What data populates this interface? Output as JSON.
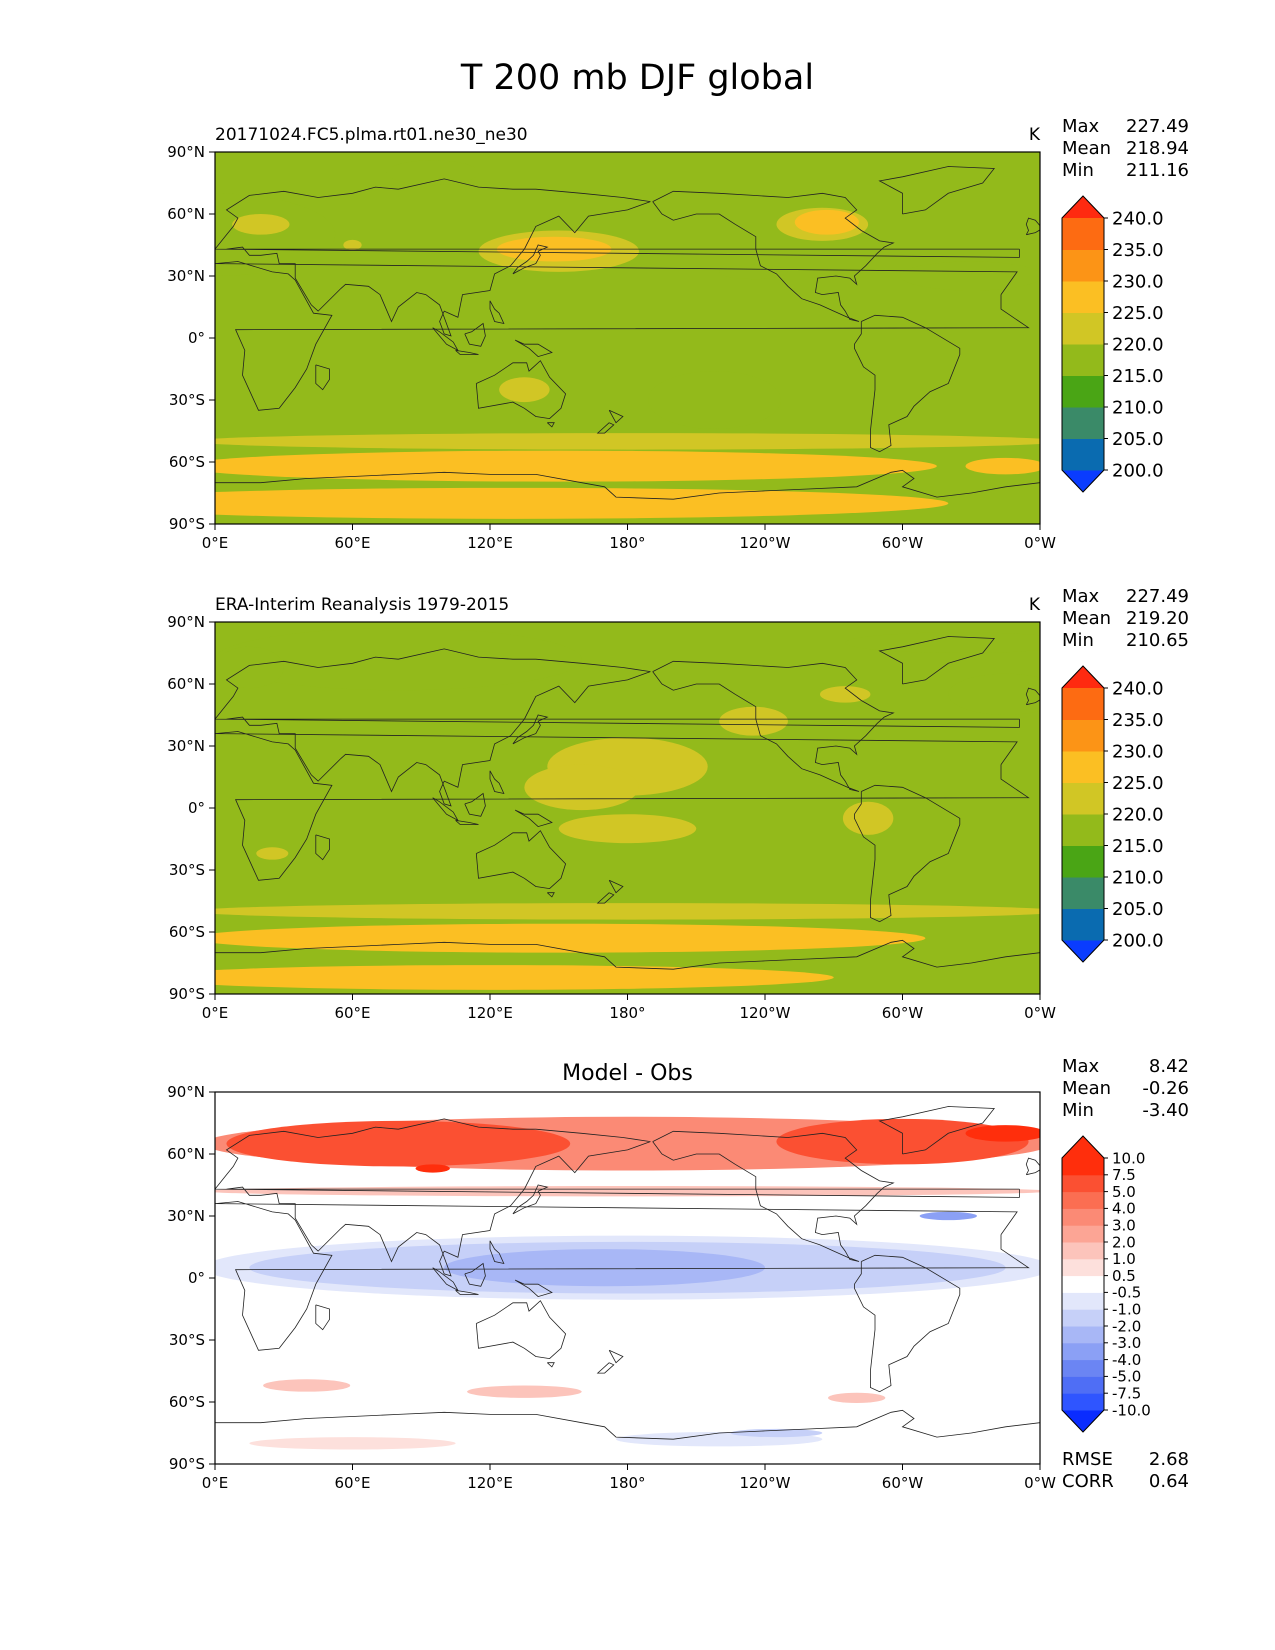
{
  "title": "T 200 mb DJF global",
  "chart_data": [
    {
      "type": "heatmap",
      "name": "model",
      "subtitle": "20171024.FC5.plma.rt01.ne30_ne30",
      "units": "K",
      "stats": {
        "max_label": "Max",
        "max": "227.49",
        "mean_label": "Mean",
        "mean": "218.94",
        "min_label": "Min",
        "min": "211.16"
      },
      "x_ticks": [
        "0°E",
        "60°E",
        "120°E",
        "180°",
        "120°W",
        "60°W",
        "0°W"
      ],
      "y_ticks": [
        "90°N",
        "60°N",
        "30°N",
        "0°",
        "30°S",
        "60°S",
        "90°S"
      ],
      "colorbar": {
        "levels": [
          "200.0",
          "205.0",
          "210.0",
          "215.0",
          "220.0",
          "225.0",
          "230.0",
          "235.0",
          "240.0"
        ],
        "colors": [
          "#0a3cff",
          "#0a6bb0",
          "#3a8a68",
          "#4aa515",
          "#93ba1b",
          "#d1c625",
          "#fbbf23",
          "#fc9416",
          "#fd6b12",
          "#ff2a10"
        ]
      },
      "background": "#93ba1b",
      "regions": [
        {
          "lon": 0,
          "lat": 50,
          "w": 105,
          "h": 40,
          "level": 215
        },
        {
          "lon": 95,
          "lat": 80,
          "w": 40,
          "h": 12,
          "level": 215
        },
        {
          "lon": 20,
          "lat": 55,
          "w": 25,
          "h": 10,
          "level": 220
        },
        {
          "lon": 60,
          "lat": 45,
          "w": 8,
          "h": 5,
          "level": 220
        },
        {
          "lon": 150,
          "lat": 42,
          "w": 70,
          "h": 20,
          "level": 220
        },
        {
          "lon": 148,
          "lat": 43,
          "w": 50,
          "h": 12,
          "level": 225
        },
        {
          "lon": 265,
          "lat": 55,
          "w": 40,
          "h": 16,
          "level": 220
        },
        {
          "lon": 267,
          "lat": 56,
          "w": 28,
          "h": 12,
          "level": 225
        },
        {
          "lon": 235,
          "lat": 32,
          "w": 30,
          "h": 7,
          "level": 215
        },
        {
          "lon": 330,
          "lat": 30,
          "w": 62,
          "h": 14,
          "level": 215
        },
        {
          "lon": 180,
          "lat": 5,
          "w": 0,
          "h": 0,
          "level": 220
        },
        {
          "lon": 218,
          "lat": -30,
          "w": 58,
          "h": 28,
          "level": 215
        },
        {
          "lon": 135,
          "lat": -25,
          "w": 22,
          "h": 12,
          "level": 220
        },
        {
          "lon": 180,
          "lat": -50,
          "w": 380,
          "h": 8,
          "level": 220
        },
        {
          "lon": 150,
          "lat": -62,
          "w": 330,
          "h": 15,
          "level": 225
        },
        {
          "lon": 130,
          "lat": -80,
          "w": 380,
          "h": 15,
          "level": 225
        },
        {
          "lon": 345,
          "lat": -62,
          "w": 35,
          "h": 8,
          "level": 225
        }
      ]
    },
    {
      "type": "heatmap",
      "name": "observation",
      "subtitle": "ERA-Interim Reanalysis 1979-2015",
      "units": "K",
      "stats": {
        "max_label": "Max",
        "max": "227.49",
        "mean_label": "Mean",
        "mean": "219.20",
        "min_label": "Min",
        "min": "210.65"
      },
      "x_ticks": [
        "0°E",
        "60°E",
        "120°E",
        "180°",
        "120°W",
        "60°W",
        "0°W"
      ],
      "y_ticks": [
        "90°N",
        "60°N",
        "30°N",
        "0°",
        "30°S",
        "60°S",
        "90°S"
      ],
      "colorbar": {
        "levels": [
          "200.0",
          "205.0",
          "210.0",
          "215.0",
          "220.0",
          "225.0",
          "230.0",
          "235.0",
          "240.0"
        ],
        "colors": [
          "#0a3cff",
          "#0a6bb0",
          "#3a8a68",
          "#4aa515",
          "#93ba1b",
          "#d1c625",
          "#fbbf23",
          "#fc9416",
          "#fd6b12",
          "#ff2a10"
        ]
      },
      "background": "#93ba1b",
      "regions": [
        {
          "lon": 80,
          "lat": 72,
          "w": 160,
          "h": 30,
          "level": 215
        },
        {
          "lon": 15,
          "lat": 68,
          "w": 30,
          "h": 20,
          "level": 215
        },
        {
          "lon": 345,
          "lat": 55,
          "w": 50,
          "h": 20,
          "level": 215
        },
        {
          "lon": 325,
          "lat": 80,
          "w": 100,
          "h": 10,
          "level": 215
        },
        {
          "lon": 180,
          "lat": 20,
          "w": 70,
          "h": 28,
          "level": 220
        },
        {
          "lon": 160,
          "lat": 10,
          "w": 50,
          "h": 22,
          "level": 220
        },
        {
          "lon": 180,
          "lat": -10,
          "w": 60,
          "h": 14,
          "level": 220
        },
        {
          "lon": 235,
          "lat": 42,
          "w": 30,
          "h": 14,
          "level": 220
        },
        {
          "lon": 275,
          "lat": 55,
          "w": 22,
          "h": 8,
          "level": 220
        },
        {
          "lon": 285,
          "lat": -5,
          "w": 22,
          "h": 16,
          "level": 220
        },
        {
          "lon": 25,
          "lat": -22,
          "w": 14,
          "h": 6,
          "level": 220
        },
        {
          "lon": 180,
          "lat": -50,
          "w": 380,
          "h": 8,
          "level": 220
        },
        {
          "lon": 150,
          "lat": -63,
          "w": 320,
          "h": 14,
          "level": 225
        },
        {
          "lon": 120,
          "lat": -82,
          "w": 300,
          "h": 12,
          "level": 225
        }
      ]
    },
    {
      "type": "heatmap",
      "name": "difference",
      "subtitle": "Model - Obs",
      "units": "",
      "stats": {
        "max_label": "Max",
        "max": "8.42",
        "mean_label": "Mean",
        "mean": "-0.26",
        "min_label": "Min",
        "min": "-3.40"
      },
      "metrics": {
        "rmse_label": "RMSE",
        "rmse": "2.68",
        "corr_label": "CORR",
        "corr": "0.64"
      },
      "x_ticks": [
        "0°E",
        "60°E",
        "120°E",
        "180°",
        "120°W",
        "60°W",
        "0°W"
      ],
      "y_ticks": [
        "90°N",
        "60°N",
        "30°N",
        "0°",
        "30°S",
        "60°S",
        "90°S"
      ],
      "colorbar": {
        "levels": [
          "-10.0",
          "-7.5",
          "-5.0",
          "-4.0",
          "-3.0",
          "-2.0",
          "-1.0",
          "-0.5",
          "0.5",
          "1.0",
          "2.0",
          "3.0",
          "4.0",
          "5.0",
          "7.5",
          "10.0"
        ],
        "colors": [
          "#0a2cff",
          "#2f55ff",
          "#4f6ef5",
          "#6b85f3",
          "#8ba0f5",
          "#a8b7f6",
          "#c6d0f8",
          "#e2e7fb",
          "#ffffff",
          "#fde0dc",
          "#fcc4bb",
          "#fca595",
          "#fb8a75",
          "#fb6e52",
          "#fb5032",
          "#ff2e0c"
        ]
      },
      "background": "#ffffff",
      "regions": [
        {
          "lon": 180,
          "lat": 65,
          "w": 370,
          "h": 26,
          "level": 3
        },
        {
          "lon": 80,
          "lat": 65,
          "w": 150,
          "h": 22,
          "level": 5
        },
        {
          "lon": 95,
          "lat": 53,
          "w": 15,
          "h": 4,
          "level": 7.5
        },
        {
          "lon": 300,
          "lat": 66,
          "w": 110,
          "h": 22,
          "level": 5
        },
        {
          "lon": 345,
          "lat": 70,
          "w": 35,
          "h": 8,
          "level": 7.5
        },
        {
          "lon": 180,
          "lat": 42,
          "w": 370,
          "h": 5,
          "level": 1
        },
        {
          "lon": 180,
          "lat": 5,
          "w": 370,
          "h": 31,
          "level": -1
        },
        {
          "lon": 180,
          "lat": 5,
          "w": 330,
          "h": 25,
          "level": -2
        },
        {
          "lon": 170,
          "lat": 5,
          "w": 140,
          "h": 18,
          "level": -3
        },
        {
          "lon": 320,
          "lat": 30,
          "w": 25,
          "h": 4,
          "level": -4
        },
        {
          "lon": 40,
          "lat": -52,
          "w": 38,
          "h": 6,
          "level": 1
        },
        {
          "lon": 135,
          "lat": -55,
          "w": 50,
          "h": 6,
          "level": 1
        },
        {
          "lon": 280,
          "lat": -58,
          "w": 25,
          "h": 5,
          "level": 1
        },
        {
          "lon": 60,
          "lat": -80,
          "w": 90,
          "h": 6,
          "level": 0.5
        },
        {
          "lon": 220,
          "lat": -78,
          "w": 90,
          "h": 7,
          "level": -1
        },
        {
          "lon": 245,
          "lat": -75,
          "w": 40,
          "h": 4,
          "level": -2
        }
      ]
    }
  ]
}
